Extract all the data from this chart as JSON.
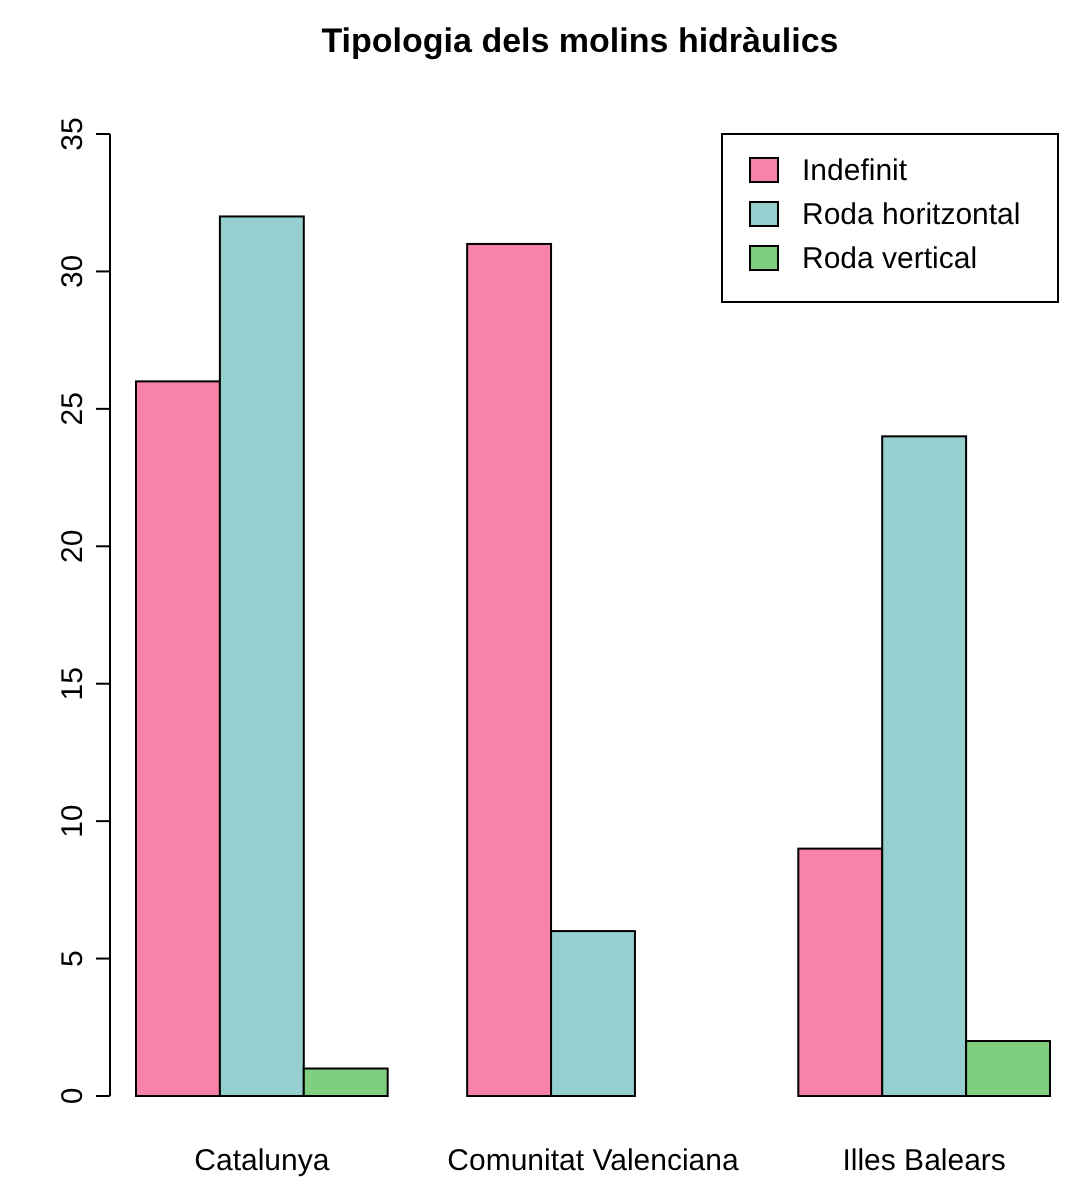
{
  "chart_data": {
    "type": "bar",
    "title": "Tipologia dels molins hidràulics",
    "categories": [
      "Catalunya",
      "Comunitat Valenciana",
      "Illes Balears"
    ],
    "series": [
      {
        "name": "Indefinit",
        "color": "#f882a8",
        "values": [
          26,
          31,
          9
        ]
      },
      {
        "name": "Roda horitzontal",
        "color": "#96cfcf",
        "values": [
          32,
          6,
          24
        ]
      },
      {
        "name": "Roda vertical",
        "color": "#7fcf7f",
        "values": [
          1,
          0,
          2
        ]
      }
    ],
    "ylim": [
      0,
      35
    ],
    "yticks": [
      0,
      5,
      10,
      15,
      20,
      25,
      30,
      35
    ],
    "grid": false,
    "legend": "top right"
  }
}
